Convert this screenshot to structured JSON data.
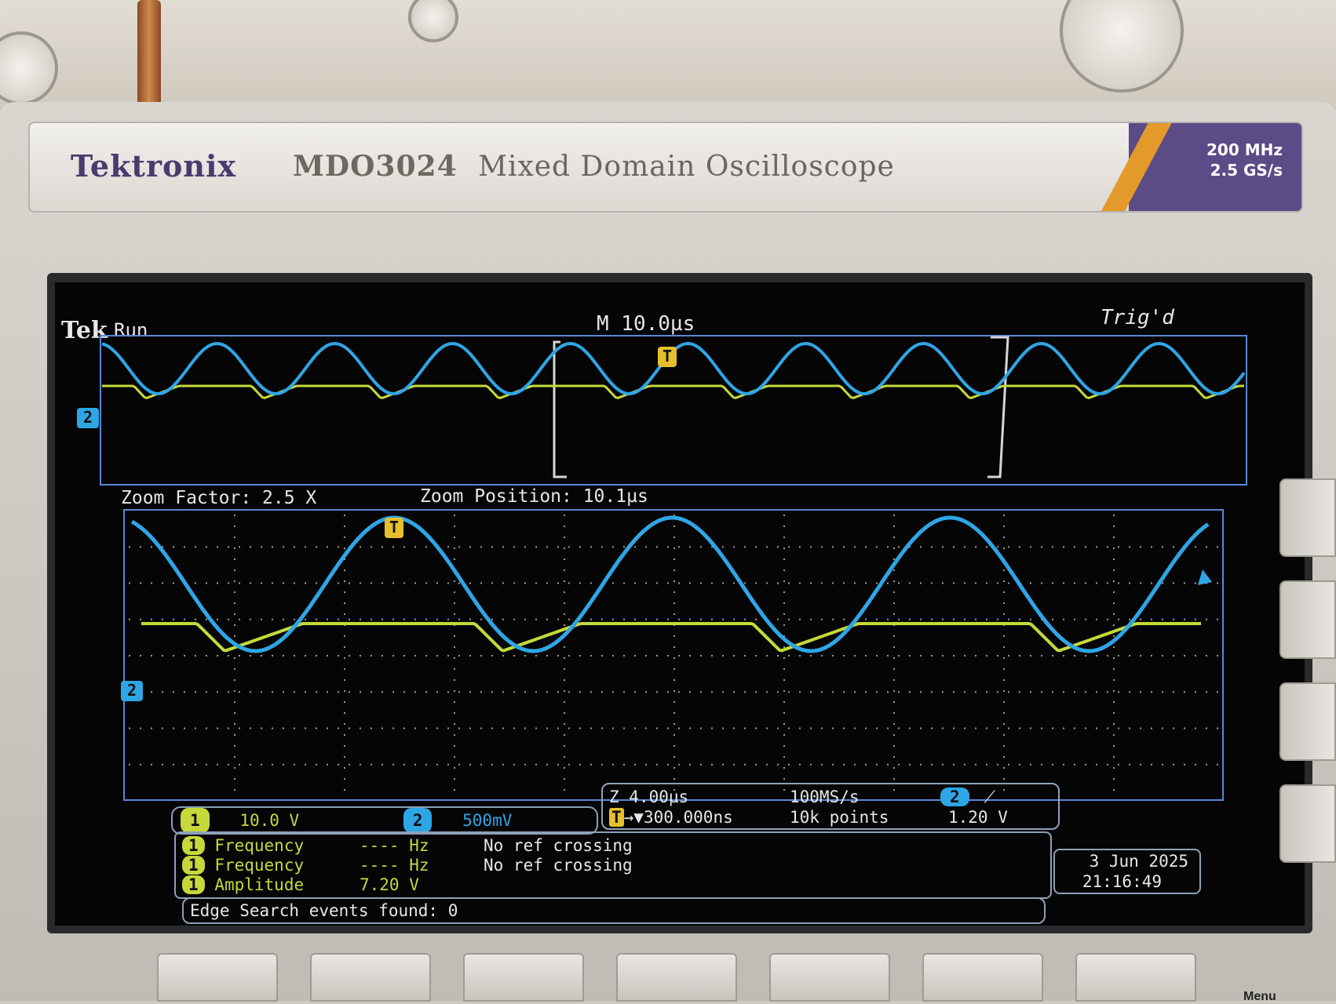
{
  "brand": {
    "name": "Tektronix",
    "model": "MDO3024",
    "description": "Mixed Domain Oscilloscope",
    "spec_line1": "200 MHz",
    "spec_line2": "2.5 GS/s"
  },
  "status": {
    "tek": "Tek",
    "run_state": "Run",
    "timebase": "M 10.0µs",
    "trigger_state": "Trig'd"
  },
  "zoom": {
    "factor_label": "Zoom Factor: 2.5 X",
    "position_label": "Zoom Position: 10.1µs"
  },
  "markers": {
    "trigger": "T",
    "ch2": "2"
  },
  "channels": {
    "ch1": {
      "number": "1",
      "scale": "10.0 V",
      "color": "#c6d93b"
    },
    "ch2": {
      "number": "2",
      "scale": "500mV",
      "color": "#2ea6e6"
    }
  },
  "timing": {
    "zoom_scale": "Z 4.00µs",
    "trigger_position": "300.000ns",
    "sample_rate": "100MS/s",
    "record_length": "10k points",
    "trigger_source": "2",
    "trigger_level": "1.20 V"
  },
  "measurements": [
    {
      "channel": "1",
      "name": "Frequency",
      "value": "---- Hz",
      "note": "No ref crossing"
    },
    {
      "channel": "1",
      "name": "Frequency",
      "value": "---- Hz",
      "note": "No ref crossing"
    },
    {
      "channel": "1",
      "name": "Amplitude",
      "value": "7.20 V",
      "note": ""
    }
  ],
  "search": {
    "label": "Edge Search events found: 0"
  },
  "datetime": {
    "date": "3 Jun  2025",
    "time": "21:16:49"
  },
  "softkey_last": "Menu"
}
